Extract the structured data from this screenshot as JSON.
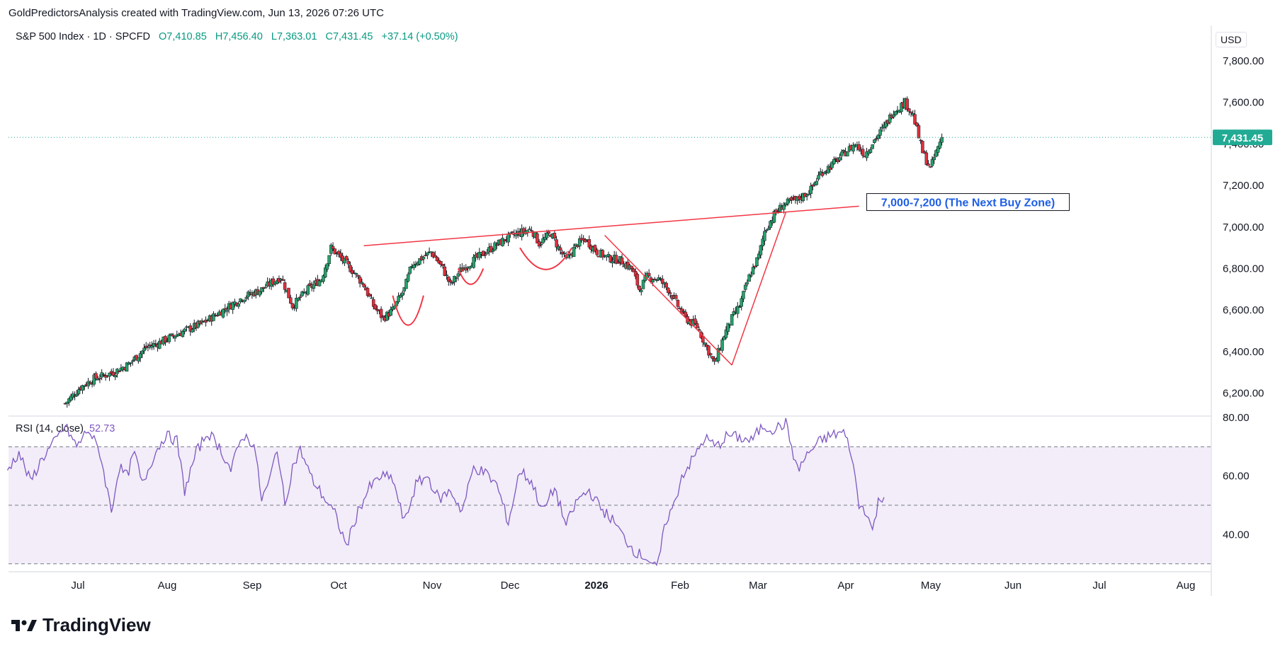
{
  "header": {
    "attribution": "GoldPredictorsAnalysis created with TradingView.com, Jun 13, 2026 07:26 UTC"
  },
  "legend": {
    "symbol": "S&P 500 Index · 1D · SPCFD",
    "open": "O7,410.85",
    "high": "H7,456.40",
    "low": "L7,363.01",
    "close": "C7,431.45",
    "change": "+37.14 (+0.50%)"
  },
  "rsi_legend": {
    "label": "RSI (14, close)",
    "value": "52.73"
  },
  "currency": "USD",
  "last_price_label": "7,431.45",
  "annotation": "7,000-7,200 (The Next Buy Zone)",
  "footer": {
    "brand": "TradingView"
  },
  "colors": {
    "up": "#26a269",
    "down": "#e0303b",
    "rsi": "#7e57c2",
    "trend": "#f23645",
    "last": "#22ab94",
    "annotation": "#1e5fe6"
  },
  "chart_data": [
    {
      "type": "candlestick",
      "series_name": "S&P 500 Index",
      "price_axis_ticks": [
        "6,200.00",
        "6,400.00",
        "6,600.00",
        "6,800.00",
        "7,000.00",
        "7,200.00",
        "7,400.00",
        "7,600.00",
        "7,800.00"
      ],
      "time_axis_ticks": [
        "Jul",
        "Aug",
        "Sep",
        "Oct",
        "Nov",
        "Dec",
        "2026",
        "Feb",
        "Mar",
        "Apr",
        "May",
        "Jun",
        "Jul",
        "Aug"
      ],
      "ylim": [
        6100,
        7970
      ],
      "last_close": 7431.45,
      "close_path": [
        [
          0,
          6150
        ],
        [
          8,
          6230
        ],
        [
          15,
          6270
        ],
        [
          25,
          6300
        ],
        [
          33,
          6340
        ],
        [
          42,
          6420
        ],
        [
          48,
          6440
        ],
        [
          55,
          6470
        ],
        [
          62,
          6500
        ],
        [
          72,
          6540
        ],
        [
          82,
          6600
        ],
        [
          92,
          6660
        ],
        [
          102,
          6700
        ],
        [
          112,
          6760
        ],
        [
          118,
          6620
        ],
        [
          126,
          6700
        ],
        [
          133,
          6750
        ],
        [
          138,
          6900
        ],
        [
          144,
          6840
        ],
        [
          150,
          6780
        ],
        [
          155,
          6720
        ],
        [
          160,
          6620
        ],
        [
          165,
          6560
        ],
        [
          170,
          6600
        ],
        [
          176,
          6700
        ],
        [
          180,
          6820
        ],
        [
          185,
          6850
        ],
        [
          190,
          6880
        ],
        [
          196,
          6800
        ],
        [
          200,
          6720
        ],
        [
          205,
          6790
        ],
        [
          212,
          6840
        ],
        [
          220,
          6890
        ],
        [
          228,
          6940
        ],
        [
          235,
          6970
        ],
        [
          242,
          6990
        ],
        [
          246,
          6920
        ],
        [
          252,
          6970
        ],
        [
          256,
          6900
        ],
        [
          260,
          6840
        ],
        [
          266,
          6920
        ],
        [
          270,
          6940
        ],
        [
          276,
          6880
        ],
        [
          282,
          6850
        ],
        [
          288,
          6840
        ],
        [
          294,
          6800
        ],
        [
          298,
          6700
        ],
        [
          302,
          6760
        ],
        [
          308,
          6750
        ],
        [
          313,
          6700
        ],
        [
          318,
          6620
        ],
        [
          322,
          6560
        ],
        [
          328,
          6520
        ],
        [
          333,
          6420
        ],
        [
          337,
          6340
        ],
        [
          342,
          6480
        ],
        [
          346,
          6560
        ],
        [
          350,
          6620
        ],
        [
          355,
          6760
        ],
        [
          360,
          6860
        ],
        [
          363,
          6980
        ],
        [
          368,
          7060
        ],
        [
          373,
          7110
        ],
        [
          380,
          7130
        ],
        [
          387,
          7180
        ],
        [
          392,
          7260
        ],
        [
          398,
          7300
        ],
        [
          405,
          7360
        ],
        [
          410,
          7400
        ],
        [
          415,
          7350
        ],
        [
          420,
          7420
        ],
        [
          425,
          7480
        ],
        [
          430,
          7560
        ],
        [
          436,
          7600
        ],
        [
          440,
          7540
        ],
        [
          445,
          7360
        ],
        [
          449,
          7280
        ],
        [
          452,
          7360
        ],
        [
          455,
          7431
        ]
      ]
    },
    {
      "type": "line",
      "series_name": "RSI (14, close)",
      "value_axis_ticks": [
        "40.00",
        "60.00",
        "80.00"
      ],
      "ylim": [
        28,
        80
      ],
      "bands": [
        30,
        50,
        70
      ],
      "last_value": 52.73,
      "values": [
        [
          0,
          62
        ],
        [
          6,
          68
        ],
        [
          12,
          58
        ],
        [
          18,
          66
        ],
        [
          25,
          72
        ],
        [
          30,
          77
        ],
        [
          36,
          70
        ],
        [
          42,
          76
        ],
        [
          48,
          68
        ],
        [
          54,
          48
        ],
        [
          58,
          63
        ],
        [
          62,
          60
        ],
        [
          66,
          68
        ],
        [
          70,
          57
        ],
        [
          76,
          67
        ],
        [
          82,
          74
        ],
        [
          88,
          72
        ],
        [
          92,
          55
        ],
        [
          98,
          68
        ],
        [
          104,
          75
        ],
        [
          110,
          70
        ],
        [
          116,
          62
        ],
        [
          122,
          74
        ],
        [
          128,
          71
        ],
        [
          132,
          52
        ],
        [
          136,
          58
        ],
        [
          140,
          70
        ],
        [
          144,
          50
        ],
        [
          148,
          63
        ],
        [
          152,
          69
        ],
        [
          158,
          59
        ],
        [
          164,
          53
        ],
        [
          170,
          47
        ],
        [
          176,
          36
        ],
        [
          182,
          48
        ],
        [
          188,
          56
        ],
        [
          194,
          60
        ],
        [
          200,
          59
        ],
        [
          206,
          44
        ],
        [
          212,
          57
        ],
        [
          218,
          60
        ],
        [
          224,
          52
        ],
        [
          230,
          55
        ],
        [
          236,
          48
        ],
        [
          242,
          63
        ],
        [
          248,
          61
        ],
        [
          254,
          57
        ],
        [
          260,
          44
        ],
        [
          266,
          62
        ],
        [
          272,
          58
        ],
        [
          278,
          48
        ],
        [
          284,
          56
        ],
        [
          290,
          43
        ],
        [
          296,
          52
        ],
        [
          302,
          55
        ],
        [
          308,
          49
        ],
        [
          314,
          45
        ],
        [
          320,
          39
        ],
        [
          326,
          34
        ],
        [
          332,
          32
        ],
        [
          337,
          28
        ],
        [
          342,
          45
        ],
        [
          346,
          50
        ],
        [
          350,
          60
        ],
        [
          356,
          66
        ],
        [
          362,
          73
        ],
        [
          368,
          70
        ],
        [
          374,
          74
        ],
        [
          380,
          73
        ],
        [
          386,
          72
        ],
        [
          392,
          77
        ],
        [
          398,
          76
        ],
        [
          404,
          78
        ],
        [
          410,
          62
        ],
        [
          416,
          68
        ],
        [
          422,
          72
        ],
        [
          428,
          74
        ],
        [
          434,
          75
        ],
        [
          438,
          68
        ],
        [
          442,
          50
        ],
        [
          446,
          48
        ],
        [
          449,
          41
        ],
        [
          452,
          51
        ],
        [
          455,
          52.73
        ]
      ]
    }
  ]
}
